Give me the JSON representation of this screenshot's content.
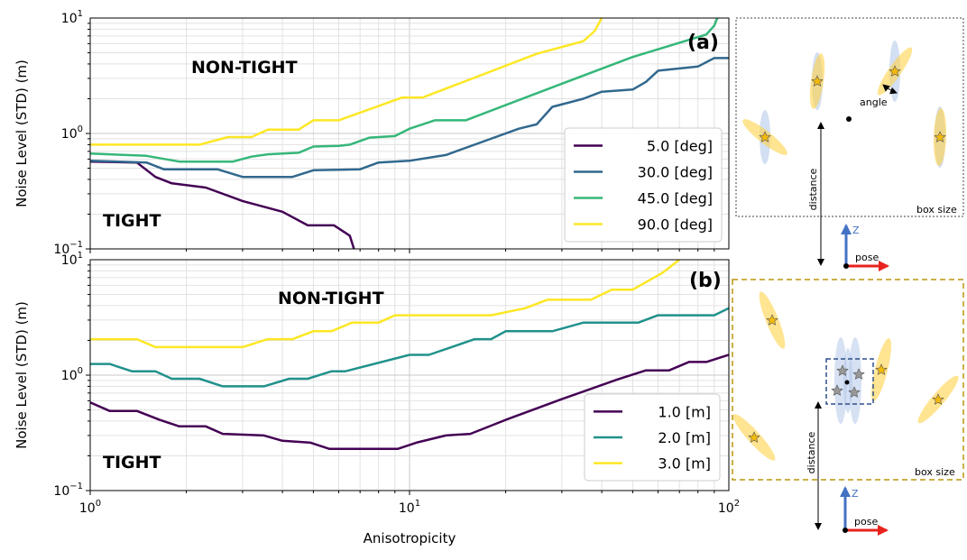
{
  "chart_data": [
    {
      "type": "line",
      "panel_label": "(a)",
      "xscale": "log",
      "yscale": "log",
      "xlim": [
        1,
        100
      ],
      "ylim": [
        0.1,
        10
      ],
      "ylabel": "Noise Level (STD) (m)",
      "xlabel": "",
      "grid": true,
      "legend_position": "lower-right",
      "annotations": {
        "upper": "NON-TIGHT",
        "lower": "TIGHT"
      },
      "series": [
        {
          "name": "5.0 [deg]",
          "color": "#440154",
          "points": [
            [
              1,
              0.57
            ],
            [
              1.4,
              0.56
            ],
            [
              1.6,
              0.42
            ],
            [
              1.8,
              0.37
            ],
            [
              2.3,
              0.34
            ],
            [
              3,
              0.26
            ],
            [
              4,
              0.21
            ],
            [
              4.8,
              0.16
            ],
            [
              5.8,
              0.16
            ],
            [
              6.5,
              0.13
            ],
            [
              6.7,
              0.1
            ]
          ]
        },
        {
          "name": "30.0 [deg]",
          "color": "#31688e",
          "points": [
            [
              1,
              0.58
            ],
            [
              1.5,
              0.56
            ],
            [
              1.7,
              0.49
            ],
            [
              2.5,
              0.49
            ],
            [
              3,
              0.42
            ],
            [
              4.3,
              0.42
            ],
            [
              5,
              0.48
            ],
            [
              7,
              0.49
            ],
            [
              8,
              0.56
            ],
            [
              10,
              0.58
            ],
            [
              13,
              0.65
            ],
            [
              17,
              0.85
            ],
            [
              22,
              1.1
            ],
            [
              25,
              1.2
            ],
            [
              28,
              1.7
            ],
            [
              35,
              2.0
            ],
            [
              40,
              2.3
            ],
            [
              50,
              2.4
            ],
            [
              55,
              2.8
            ],
            [
              60,
              3.5
            ],
            [
              80,
              3.8
            ],
            [
              90,
              4.5
            ],
            [
              100,
              4.5
            ]
          ]
        },
        {
          "name": "45.0 [deg]",
          "color": "#35b779",
          "points": [
            [
              1,
              0.67
            ],
            [
              1.5,
              0.64
            ],
            [
              1.9,
              0.57
            ],
            [
              2.8,
              0.57
            ],
            [
              3.2,
              0.63
            ],
            [
              3.6,
              0.66
            ],
            [
              4.5,
              0.68
            ],
            [
              5,
              0.77
            ],
            [
              6,
              0.78
            ],
            [
              6.5,
              0.8
            ],
            [
              7.5,
              0.92
            ],
            [
              9,
              0.95
            ],
            [
              10,
              1.1
            ],
            [
              12,
              1.3
            ],
            [
              15,
              1.3
            ],
            [
              30,
              2.7
            ],
            [
              50,
              4.6
            ],
            [
              85,
              7.2
            ],
            [
              90,
              8.6
            ],
            [
              92,
              10
            ]
          ]
        },
        {
          "name": "90.0 [deg]",
          "color": "#fde725",
          "points": [
            [
              1,
              0.8
            ],
            [
              2.2,
              0.8
            ],
            [
              2.7,
              0.93
            ],
            [
              3.2,
              0.93
            ],
            [
              3.6,
              1.08
            ],
            [
              4.5,
              1.08
            ],
            [
              5,
              1.3
            ],
            [
              6,
              1.3
            ],
            [
              9.5,
              2.05
            ],
            [
              11,
              2.05
            ],
            [
              25,
              4.9
            ],
            [
              35,
              6.3
            ],
            [
              38,
              7.7
            ],
            [
              40,
              10
            ]
          ]
        }
      ]
    },
    {
      "type": "line",
      "panel_label": "(b)",
      "xscale": "log",
      "yscale": "log",
      "xlim": [
        1,
        100
      ],
      "ylim": [
        0.1,
        10
      ],
      "ylabel": "Noise Level (STD) (m)",
      "xlabel": "Anisotropicity",
      "grid": true,
      "legend_position": "lower-right",
      "annotations": {
        "upper": "NON-TIGHT",
        "lower": "TIGHT"
      },
      "series": [
        {
          "name": "1.0 [m]",
          "color": "#440154",
          "points": [
            [
              1,
              0.58
            ],
            [
              1.15,
              0.49
            ],
            [
              1.4,
              0.49
            ],
            [
              1.65,
              0.41
            ],
            [
              1.9,
              0.36
            ],
            [
              2.3,
              0.36
            ],
            [
              2.6,
              0.31
            ],
            [
              3.5,
              0.3
            ],
            [
              4,
              0.27
            ],
            [
              4.9,
              0.26
            ],
            [
              5.6,
              0.23
            ],
            [
              9.2,
              0.23
            ],
            [
              10.5,
              0.26
            ],
            [
              13,
              0.3
            ],
            [
              15.5,
              0.31
            ],
            [
              20,
              0.41
            ],
            [
              30,
              0.62
            ],
            [
              45,
              0.92
            ],
            [
              55,
              1.1
            ],
            [
              65,
              1.1
            ],
            [
              75,
              1.3
            ],
            [
              85,
              1.3
            ],
            [
              100,
              1.5
            ]
          ]
        },
        {
          "name": "2.0 [m]",
          "color": "#21918c",
          "points": [
            [
              1,
              1.25
            ],
            [
              1.15,
              1.25
            ],
            [
              1.35,
              1.08
            ],
            [
              1.6,
              1.08
            ],
            [
              1.8,
              0.93
            ],
            [
              2.2,
              0.93
            ],
            [
              2.6,
              0.8
            ],
            [
              3.5,
              0.8
            ],
            [
              4.2,
              0.93
            ],
            [
              4.8,
              0.93
            ],
            [
              5.7,
              1.08
            ],
            [
              6.3,
              1.08
            ],
            [
              10,
              1.5
            ],
            [
              11.5,
              1.5
            ],
            [
              16,
              2.05
            ],
            [
              18,
              2.05
            ],
            [
              20,
              2.4
            ],
            [
              28,
              2.4
            ],
            [
              35,
              2.85
            ],
            [
              52,
              2.85
            ],
            [
              60,
              3.3
            ],
            [
              90,
              3.3
            ],
            [
              100,
              3.8
            ]
          ]
        },
        {
          "name": "3.0 [m]",
          "color": "#fde725",
          "points": [
            [
              1,
              2.05
            ],
            [
              1.4,
              2.05
            ],
            [
              1.6,
              1.75
            ],
            [
              3,
              1.75
            ],
            [
              3.6,
              2.05
            ],
            [
              4.3,
              2.05
            ],
            [
              5,
              2.4
            ],
            [
              5.7,
              2.4
            ],
            [
              6.6,
              2.85
            ],
            [
              8,
              2.85
            ],
            [
              9,
              3.3
            ],
            [
              18,
              3.3
            ],
            [
              23,
              3.8
            ],
            [
              27,
              4.5
            ],
            [
              37,
              4.5
            ],
            [
              43,
              5.5
            ],
            [
              50,
              5.5
            ],
            [
              62,
              7.7
            ],
            [
              70,
              10
            ]
          ]
        }
      ]
    }
  ],
  "diagrams": {
    "a": {
      "angle_label": "angle",
      "distance_label": "distance",
      "box_label": "box size",
      "axis_label": "Z",
      "pose_label": "pose"
    },
    "b": {
      "distance_label": "distance",
      "box_label": "box size",
      "axis_label": "Z",
      "pose_label": "pose"
    }
  }
}
